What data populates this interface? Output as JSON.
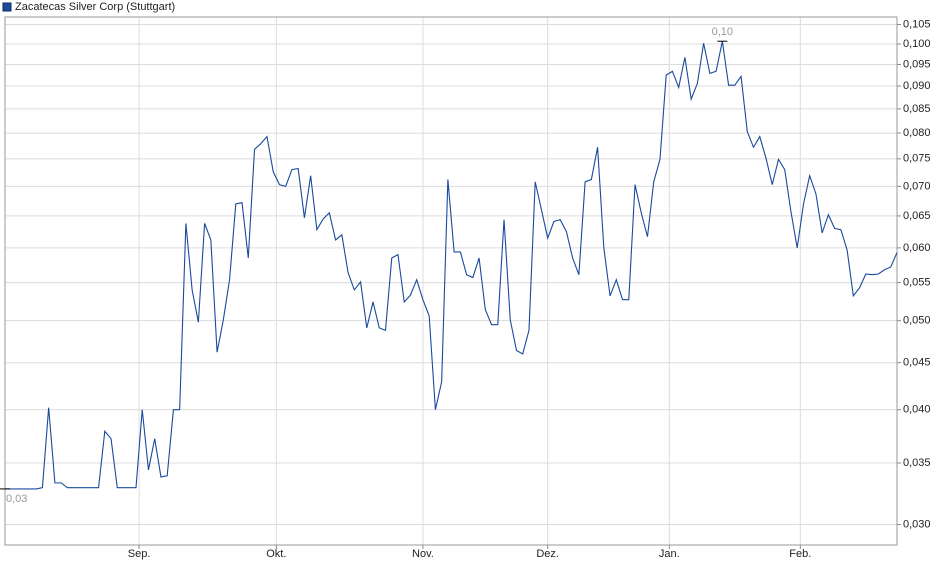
{
  "chart_data": {
    "type": "line",
    "title": "Zacatecas Silver Corp (Stuttgart)",
    "log_scale": true,
    "grid": true,
    "color": "#1a4a9c",
    "series": [
      {
        "name": "Zacatecas Silver Corp (Stuttgart)",
        "color": "#1a4a9c",
        "values": [
          0.0328,
          0.0328,
          0.0328,
          0.0328,
          0.0328,
          0.0328,
          0.0329,
          0.0402,
          0.0333,
          0.0333,
          0.0329,
          0.0329,
          0.0329,
          0.0329,
          0.0329,
          0.0329,
          0.0379,
          0.0372,
          0.0329,
          0.0329,
          0.0329,
          0.0329,
          0.04,
          0.0344,
          0.0372,
          0.0338,
          0.0339,
          0.04,
          0.04,
          0.0638,
          0.054,
          0.0498,
          0.0638,
          0.0612,
          0.0462,
          0.0501,
          0.0554,
          0.067,
          0.0672,
          0.0585,
          0.0768,
          0.0779,
          0.0793,
          0.0726,
          0.0703,
          0.07,
          0.073,
          0.0732,
          0.0647,
          0.0719,
          0.0628,
          0.0645,
          0.0655,
          0.0612,
          0.062,
          0.0564,
          0.054,
          0.0551,
          0.0491,
          0.0524,
          0.0491,
          0.0488,
          0.0585,
          0.059,
          0.0524,
          0.0533,
          0.0554,
          0.0527,
          0.0506,
          0.04,
          0.0429,
          0.0712,
          0.0594,
          0.0594,
          0.0561,
          0.0557,
          0.0585,
          0.0514,
          0.0495,
          0.0495,
          0.0644,
          0.0501,
          0.0464,
          0.046,
          0.0488,
          0.0708,
          0.066,
          0.0615,
          0.0641,
          0.0644,
          0.0625,
          0.0585,
          0.0561,
          0.0708,
          0.0712,
          0.0772,
          0.06,
          0.0532,
          0.0554,
          0.0527,
          0.0527,
          0.0703,
          0.0655,
          0.0617,
          0.0708,
          0.0749,
          0.0925,
          0.0934,
          0.0897,
          0.0967,
          0.0871,
          0.0906,
          0.1002,
          0.0929,
          0.0934,
          0.1007,
          0.0902,
          0.0902,
          0.0922,
          0.0803,
          0.0772,
          0.0793,
          0.0751,
          0.0703,
          0.0749,
          0.073,
          0.0657,
          0.06,
          0.0669,
          0.0719,
          0.0687,
          0.0623,
          0.0652,
          0.063,
          0.0628,
          0.0597,
          0.0532,
          0.0543,
          0.0562,
          0.0561,
          0.0562,
          0.0568,
          0.0572,
          0.0593
        ]
      }
    ],
    "xlim": [
      0,
      143
    ],
    "xticks": [
      {
        "value": 21.5,
        "label": "Sep."
      },
      {
        "value": 43.5,
        "label": "Okt."
      },
      {
        "value": 67,
        "label": "Nov."
      },
      {
        "value": 87,
        "label": "Dez."
      },
      {
        "value": 106.5,
        "label": "Jan."
      },
      {
        "value": 127.5,
        "label": "Feb."
      }
    ],
    "ylim": [
      0.0285,
      0.107
    ],
    "yticks": [
      {
        "value": 0.03,
        "label": "0,030"
      },
      {
        "value": 0.035,
        "label": "0,035"
      },
      {
        "value": 0.04,
        "label": "0,040"
      },
      {
        "value": 0.045,
        "label": "0,045"
      },
      {
        "value": 0.05,
        "label": "0,050"
      },
      {
        "value": 0.055,
        "label": "0,055"
      },
      {
        "value": 0.06,
        "label": "0,060"
      },
      {
        "value": 0.065,
        "label": "0,065"
      },
      {
        "value": 0.07,
        "label": "0,070"
      },
      {
        "value": 0.075,
        "label": "0,075"
      },
      {
        "value": 0.08,
        "label": "0,080"
      },
      {
        "value": 0.085,
        "label": "0,085"
      },
      {
        "value": 0.09,
        "label": "0,090"
      },
      {
        "value": 0.095,
        "label": "0,095"
      },
      {
        "value": 0.1,
        "label": "0,100"
      },
      {
        "value": 0.105,
        "label": "0,105"
      }
    ],
    "annotations": [
      {
        "index": 115,
        "label": "0,10"
      },
      {
        "index": 0,
        "label": "0,03"
      }
    ]
  }
}
